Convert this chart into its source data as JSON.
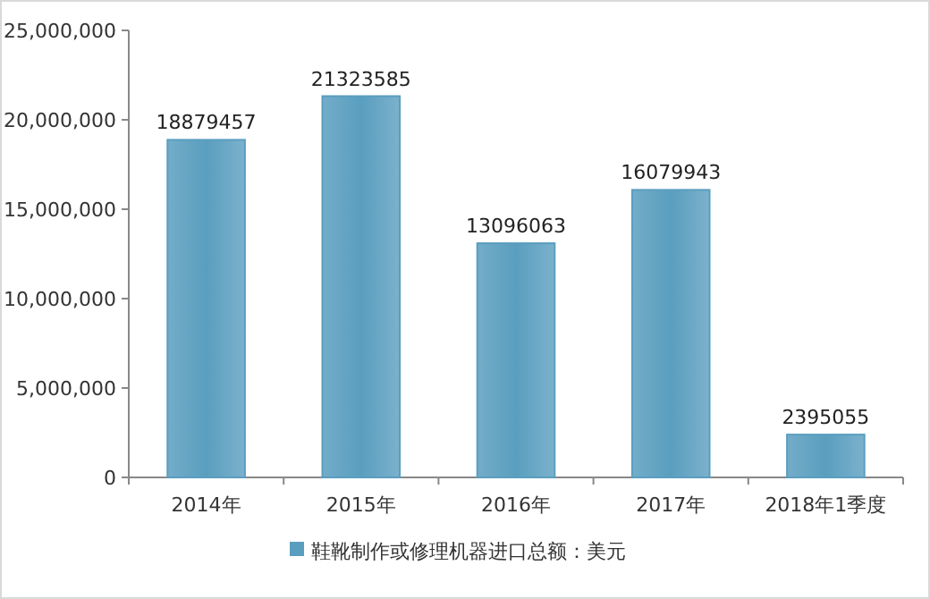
{
  "chart_data": {
    "type": "bar",
    "categories": [
      "2014年",
      "2015年",
      "2016年",
      "2017年",
      "2018年1季度"
    ],
    "series": [
      {
        "name": "鞋靴制作或修理机器进口总额：美元",
        "color": "#5a9ebf",
        "values": [
          18879457,
          21323585,
          13096063,
          16079943,
          2395055
        ]
      }
    ],
    "ylim": [
      0,
      25000000
    ],
    "yticks": [
      {
        "value": 0,
        "label": "0"
      },
      {
        "value": 5000000,
        "label": "5,000,000"
      },
      {
        "value": 10000000,
        "label": "10,000,000"
      },
      {
        "value": 15000000,
        "label": "15,000,000"
      },
      {
        "value": 20000000,
        "label": "20,000,000"
      },
      {
        "value": 25000000,
        "label": "25,000,000"
      }
    ],
    "data_labels": true,
    "legend": "bottom",
    "grid": false
  }
}
